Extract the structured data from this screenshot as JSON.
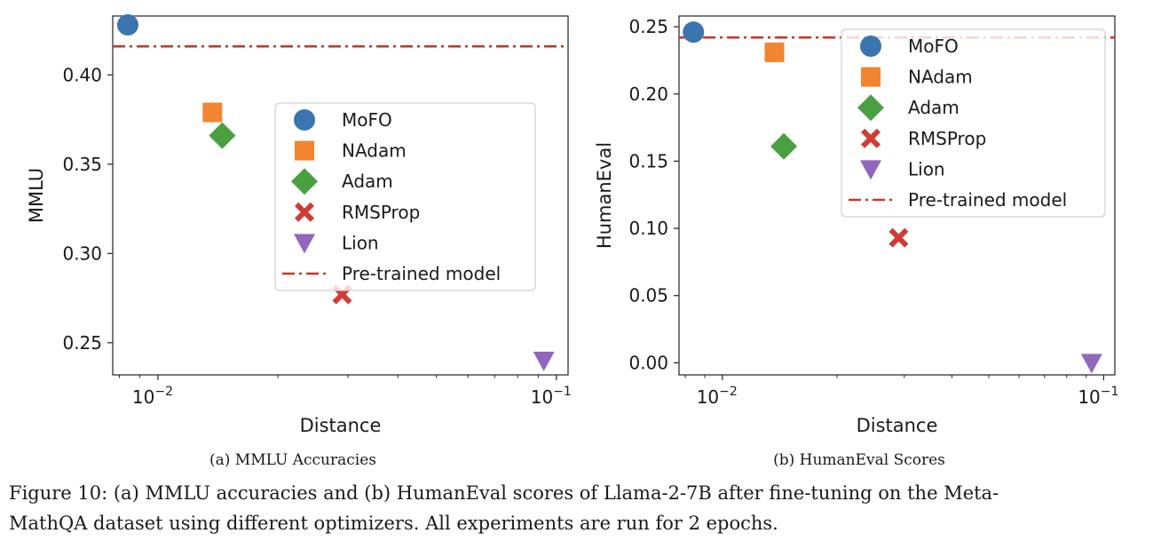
{
  "chart_data": [
    {
      "type": "scatter",
      "panel": "a",
      "subcaption": "(a) MMLU Accuracies",
      "xlabel": "Distance",
      "ylabel": "MMLU",
      "xscale": "log",
      "xlim": [
        0.0077,
        0.107
      ],
      "ylim": [
        0.232,
        0.433
      ],
      "xticks": [
        {
          "value": 0.01,
          "base": "10",
          "exp": "−2"
        },
        {
          "value": 0.1,
          "base": "10",
          "exp": "−1"
        }
      ],
      "yticks": [
        {
          "value": 0.25,
          "label": "0.25"
        },
        {
          "value": 0.3,
          "label": "0.30"
        },
        {
          "value": 0.35,
          "label": "0.35"
        },
        {
          "value": 0.4,
          "label": "0.40"
        }
      ],
      "grid": false,
      "legend_position": "center-right",
      "reference_line": {
        "name": "Pre-trained model",
        "y": 0.416,
        "color": "#c0392b",
        "style": "dash-dot"
      },
      "series": [
        {
          "name": "MoFO",
          "marker": "circle",
          "color": "#3a75b0",
          "x": 0.0084,
          "y": 0.428
        },
        {
          "name": "NAdam",
          "marker": "square",
          "color": "#f28530",
          "x": 0.0137,
          "y": 0.379
        },
        {
          "name": "Adam",
          "marker": "diamond",
          "color": "#4aa041",
          "x": 0.0145,
          "y": 0.366
        },
        {
          "name": "RMSProp",
          "marker": "x",
          "color": "#d03b33",
          "x": 0.029,
          "y": 0.277
        },
        {
          "name": "Lion",
          "marker": "triangle-down",
          "color": "#9067bd",
          "x": 0.093,
          "y": 0.24
        }
      ]
    },
    {
      "type": "scatter",
      "panel": "b",
      "subcaption": "(b) HumanEval Scores",
      "xlabel": "Distance",
      "ylabel": "HumanEval",
      "xscale": "log",
      "xlim": [
        0.0077,
        0.107
      ],
      "ylim": [
        -0.009,
        0.258
      ],
      "xticks": [
        {
          "value": 0.01,
          "base": "10",
          "exp": "−2"
        },
        {
          "value": 0.1,
          "base": "10",
          "exp": "−1"
        }
      ],
      "yticks": [
        {
          "value": 0.0,
          "label": "0.00"
        },
        {
          "value": 0.05,
          "label": "0.05"
        },
        {
          "value": 0.1,
          "label": "0.10"
        },
        {
          "value": 0.15,
          "label": "0.15"
        },
        {
          "value": 0.2,
          "label": "0.20"
        },
        {
          "value": 0.25,
          "label": "0.25"
        }
      ],
      "grid": false,
      "legend_position": "upper-right",
      "reference_line": {
        "name": "Pre-trained model",
        "y": 0.242,
        "color": "#c0392b",
        "style": "dash-dot"
      },
      "series": [
        {
          "name": "MoFO",
          "marker": "circle",
          "color": "#3a75b0",
          "x": 0.0084,
          "y": 0.246
        },
        {
          "name": "NAdam",
          "marker": "square",
          "color": "#f28530",
          "x": 0.0137,
          "y": 0.231
        },
        {
          "name": "Adam",
          "marker": "diamond",
          "color": "#4aa041",
          "x": 0.0145,
          "y": 0.161
        },
        {
          "name": "RMSProp",
          "marker": "x",
          "color": "#d03b33",
          "x": 0.029,
          "y": 0.093
        },
        {
          "name": "Lion",
          "marker": "triangle-down",
          "color": "#9067bd",
          "x": 0.093,
          "y": 0.0
        }
      ]
    }
  ],
  "caption": {
    "line1": "Figure 10: (a) MMLU accuracies and (b) HumanEval scores of Llama-2-7B after fine-tuning on the Meta-",
    "line2": "MathQA dataset using different optimizers. All experiments are run for 2 epochs."
  }
}
